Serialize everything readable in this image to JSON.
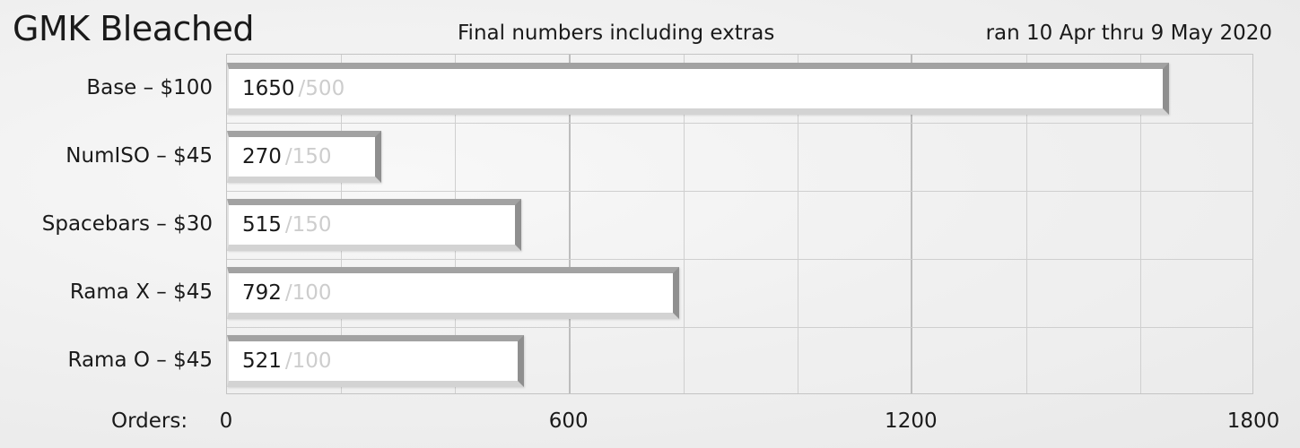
{
  "title": "GMK Bleached",
  "chart_data": {
    "type": "bar",
    "orientation": "horizontal",
    "title": "GMK Bleached",
    "subtitle": "Final numbers including extras",
    "annotation": "ran 10 Apr thru 9 May 2020",
    "xlabel": "Orders:",
    "ylabel": "",
    "xlim": [
      0,
      1800
    ],
    "x_ticks": [
      "0",
      "600",
      "1200",
      "1800"
    ],
    "grid": true,
    "categories": [
      "Base – $100",
      "NumISO – $45",
      "Spacebars – $30",
      "Rama X – $45",
      "Rama O – $45"
    ],
    "values": [
      1650,
      270,
      515,
      792,
      521
    ],
    "targets": [
      500,
      150,
      150,
      100,
      100
    ],
    "separator": "/"
  }
}
